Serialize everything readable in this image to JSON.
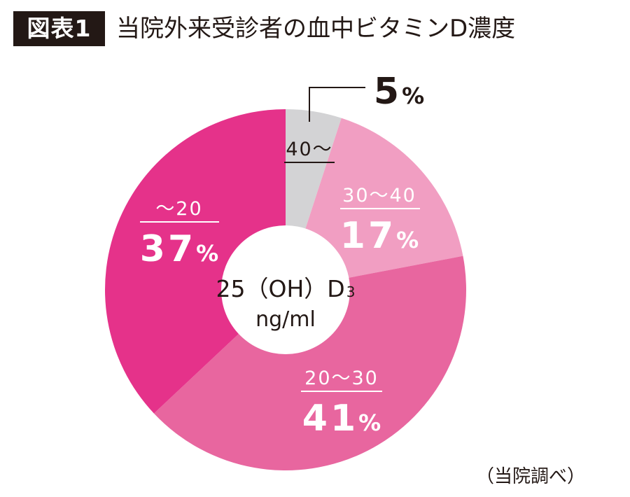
{
  "figure_label": "図表1",
  "source_note": "（当院調べ）",
  "center_label": {
    "main": "25（OH）D",
    "subscript": "3",
    "unit": "ng/ml"
  },
  "chart_data": {
    "type": "pie",
    "title": "当院外来受診者の血中ビタミンD濃度",
    "unit": "%",
    "slices": [
      {
        "label": "40〜",
        "value": 5,
        "color": "#d3d3d5",
        "text_color": "#231815"
      },
      {
        "label": "30〜40",
        "value": 17,
        "color": "#f19ec2",
        "text_color": "#ffffff"
      },
      {
        "label": "20〜30",
        "value": 41,
        "color": "#e8669f",
        "text_color": "#ffffff"
      },
      {
        "label": "〜20",
        "value": 37,
        "color": "#e5328a",
        "text_color": "#ffffff"
      }
    ]
  }
}
